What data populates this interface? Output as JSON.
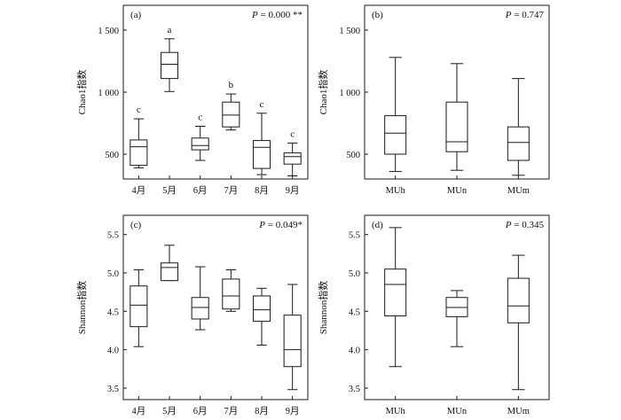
{
  "colors": {
    "stroke": "#1a1a1a",
    "box_fill": "#ffffff",
    "background": "#ffffff"
  },
  "chart_data": [
    {
      "panel": "(a)",
      "type": "box",
      "annotation": "P = 0.000 **",
      "p_italic": "P",
      "p_rest": " = 0.000 **",
      "ylabel": "Chao1指数",
      "ylim": [
        300,
        1700
      ],
      "yticks": [
        500,
        1000,
        1500
      ],
      "ytick_labels": [
        "500",
        "1 000",
        "1 500"
      ],
      "categories": [
        "4月",
        "5月",
        "6月",
        "7月",
        "8月",
        "9月"
      ],
      "boxes": [
        {
          "min": 390,
          "q1": 410,
          "median": 560,
          "q3": 615,
          "max": 785,
          "letter": "c"
        },
        {
          "min": 1005,
          "q1": 1110,
          "median": 1225,
          "q3": 1320,
          "max": 1430,
          "letter": "a"
        },
        {
          "min": 450,
          "q1": 535,
          "median": 570,
          "q3": 630,
          "max": 725,
          "letter": "c"
        },
        {
          "min": 695,
          "q1": 720,
          "median": 815,
          "q3": 920,
          "max": 985,
          "letter": "b"
        },
        {
          "min": 335,
          "q1": 385,
          "median": 555,
          "q3": 610,
          "max": 830,
          "letter": "c"
        },
        {
          "min": 325,
          "q1": 420,
          "median": 480,
          "q3": 510,
          "max": 590,
          "letter": "c"
        }
      ]
    },
    {
      "panel": "(b)",
      "type": "box",
      "annotation": "P = 0.747",
      "p_italic": "P",
      "p_rest": " = 0.747",
      "ylabel": "Chao1指数",
      "ylim": [
        300,
        1700
      ],
      "yticks": [
        500,
        1000,
        1500
      ],
      "ytick_labels": [
        "500",
        "1 000",
        "1 500"
      ],
      "categories": [
        "MUh",
        "MUn",
        "MUm"
      ],
      "boxes": [
        {
          "min": 360,
          "q1": 500,
          "median": 670,
          "q3": 810,
          "max": 1280,
          "letter": ""
        },
        {
          "min": 370,
          "q1": 520,
          "median": 600,
          "q3": 920,
          "max": 1230,
          "letter": ""
        },
        {
          "min": 330,
          "q1": 450,
          "median": 595,
          "q3": 720,
          "max": 1110,
          "letter": ""
        }
      ]
    },
    {
      "panel": "(c)",
      "type": "box",
      "annotation": "P = 0.049*",
      "p_italic": "P",
      "p_rest": " = 0.049*",
      "ylabel": "Shannon指数",
      "ylim": [
        3.35,
        5.75
      ],
      "yticks": [
        3.5,
        4.0,
        4.5,
        5.0,
        5.5
      ],
      "ytick_labels": [
        "3.5",
        "4.0",
        "4.5",
        "5.0",
        "5.5"
      ],
      "categories": [
        "4月",
        "5月",
        "6月",
        "7月",
        "8月",
        "9月"
      ],
      "boxes": [
        {
          "min": 4.04,
          "q1": 4.3,
          "median": 4.58,
          "q3": 4.83,
          "max": 5.04,
          "letter": ""
        },
        {
          "min": 4.9,
          "q1": 4.9,
          "median": 5.07,
          "q3": 5.13,
          "max": 5.36,
          "letter": ""
        },
        {
          "min": 4.26,
          "q1": 4.4,
          "median": 4.55,
          "q3": 4.68,
          "max": 5.08,
          "letter": ""
        },
        {
          "min": 4.5,
          "q1": 4.53,
          "median": 4.7,
          "q3": 4.92,
          "max": 5.04,
          "letter": ""
        },
        {
          "min": 4.06,
          "q1": 4.37,
          "median": 4.52,
          "q3": 4.7,
          "max": 4.8,
          "letter": ""
        },
        {
          "min": 3.48,
          "q1": 3.78,
          "median": 4.0,
          "q3": 4.45,
          "max": 4.85,
          "letter": ""
        }
      ]
    },
    {
      "panel": "(d)",
      "type": "box",
      "annotation": "P = 0.345",
      "p_italic": "P",
      "p_rest": " = 0.345",
      "ylabel": "Shannon指数",
      "ylim": [
        3.35,
        5.75
      ],
      "yticks": [
        3.5,
        4.0,
        4.5,
        5.0,
        5.5
      ],
      "ytick_labels": [
        "3.5",
        "4.0",
        "4.5",
        "5.0",
        "5.5"
      ],
      "categories": [
        "MUh",
        "MUn",
        "MUm"
      ],
      "boxes": [
        {
          "min": 3.78,
          "q1": 4.44,
          "median": 4.85,
          "q3": 5.05,
          "max": 5.59,
          "letter": ""
        },
        {
          "min": 4.04,
          "q1": 4.43,
          "median": 4.55,
          "q3": 4.68,
          "max": 4.77,
          "letter": ""
        },
        {
          "min": 3.48,
          "q1": 4.35,
          "median": 4.57,
          "q3": 4.93,
          "max": 5.23,
          "letter": ""
        }
      ]
    }
  ]
}
